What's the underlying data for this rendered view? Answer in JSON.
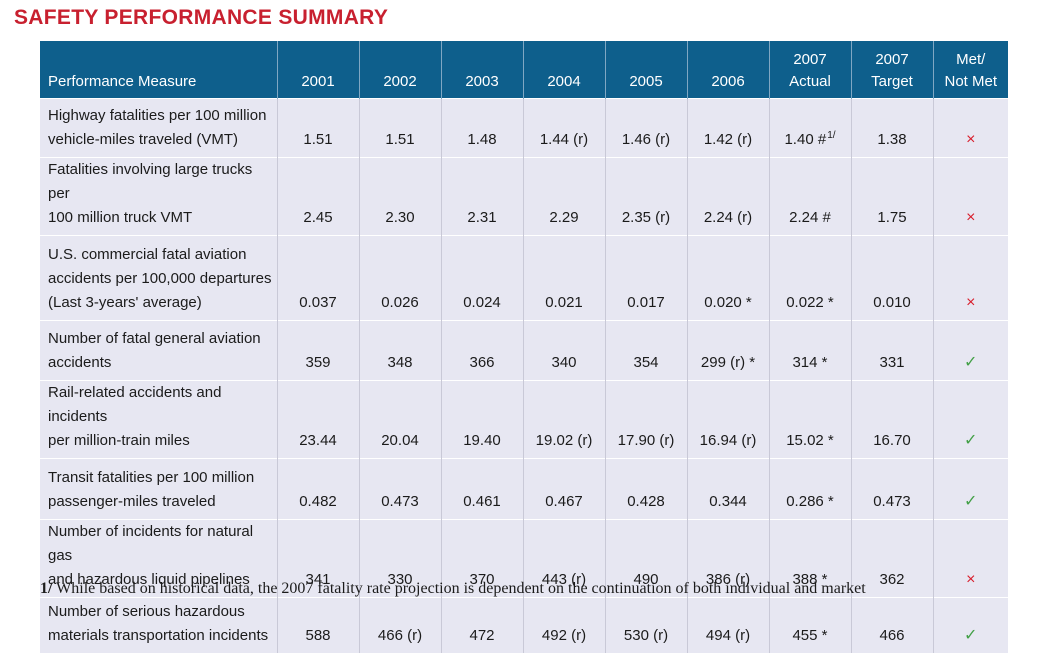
{
  "title": "SAFETY PERFORMANCE SUMMARY",
  "table": {
    "headers": [
      {
        "top": "",
        "bottom": "Performance Measure"
      },
      {
        "top": "",
        "bottom": "2001"
      },
      {
        "top": "",
        "bottom": "2002"
      },
      {
        "top": "",
        "bottom": "2003"
      },
      {
        "top": "",
        "bottom": "2004"
      },
      {
        "top": "",
        "bottom": "2005"
      },
      {
        "top": "",
        "bottom": "2006"
      },
      {
        "top": "2007",
        "bottom": "Actual"
      },
      {
        "top": "2007",
        "bottom": "Target"
      },
      {
        "top": "Met/",
        "bottom": "Not Met"
      }
    ],
    "rows": [
      {
        "measure": [
          "Highway fatalities per 100 million",
          "vehicle-miles traveled (VMT)"
        ],
        "values": [
          "1.51",
          "1.51",
          "1.48",
          "1.44 (r)",
          "1.46 (r)",
          "1.42 (r)",
          "1.40 #",
          "1.38"
        ],
        "actual_note": "1/",
        "status": "not-met",
        "status_symbol": "×"
      },
      {
        "measure": [
          "Fatalities involving large trucks per",
          "100 million truck VMT"
        ],
        "values": [
          "2.45",
          "2.30",
          "2.31",
          "2.29",
          "2.35 (r)",
          "2.24 (r)",
          "2.24 #",
          "1.75"
        ],
        "actual_note": "",
        "status": "not-met",
        "status_symbol": "×"
      },
      {
        "measure": [
          "U.S. commercial fatal aviation",
          "accidents per 100,000 departures",
          "(Last 3-years' average)"
        ],
        "values": [
          "0.037",
          "0.026",
          "0.024",
          "0.021",
          "0.017",
          "0.020 *",
          "0.022 *",
          "0.010"
        ],
        "actual_note": "",
        "status": "not-met",
        "status_symbol": "×"
      },
      {
        "measure": [
          "Number of fatal general aviation",
          "accidents"
        ],
        "values": [
          "359",
          "348",
          "366",
          "340",
          "354",
          "299 (r) *",
          "314 *",
          "331"
        ],
        "actual_note": "",
        "status": "met",
        "status_symbol": "✓"
      },
      {
        "measure": [
          "Rail-related accidents and incidents",
          "per million-train miles"
        ],
        "values": [
          "23.44",
          "20.04",
          "19.40",
          "19.02 (r)",
          "17.90 (r)",
          "16.94 (r)",
          "15.02 *",
          "16.70"
        ],
        "actual_note": "",
        "status": "met",
        "status_symbol": "✓"
      },
      {
        "measure": [
          "Transit fatalities per 100 million",
          "passenger-miles traveled"
        ],
        "values": [
          "0.482",
          "0.473",
          "0.461",
          "0.467",
          "0.428",
          "0.344",
          "0.286 *",
          "0.473"
        ],
        "actual_note": "",
        "status": "met",
        "status_symbol": "✓"
      },
      {
        "measure": [
          "Number of incidents for natural gas",
          "and hazardous liquid pipelines"
        ],
        "values": [
          "341",
          "330",
          "370",
          "443 (r)",
          "490",
          "386 (r)",
          "388 *",
          "362"
        ],
        "actual_note": "",
        "status": "not-met",
        "status_symbol": "×"
      },
      {
        "measure": [
          "Number of serious hazardous",
          "materials transportation incidents"
        ],
        "values": [
          "588",
          "466 (r)",
          "472",
          "492 (r)",
          "530 (r)",
          "494 (r)",
          "455 *",
          "466"
        ],
        "actual_note": "",
        "status": "met",
        "status_symbol": "✓"
      }
    ]
  },
  "footnote": {
    "mark": "1/",
    "text": " While based on historical data, the 2007 fatality rate projection is dependent on the continuation of both individual and market"
  },
  "colors": {
    "title": "#c8202f",
    "header_bg": "#0e5f8c",
    "row_bg": "#e7e7f2",
    "not_met": "#d81e2c",
    "met": "#43a047"
  }
}
